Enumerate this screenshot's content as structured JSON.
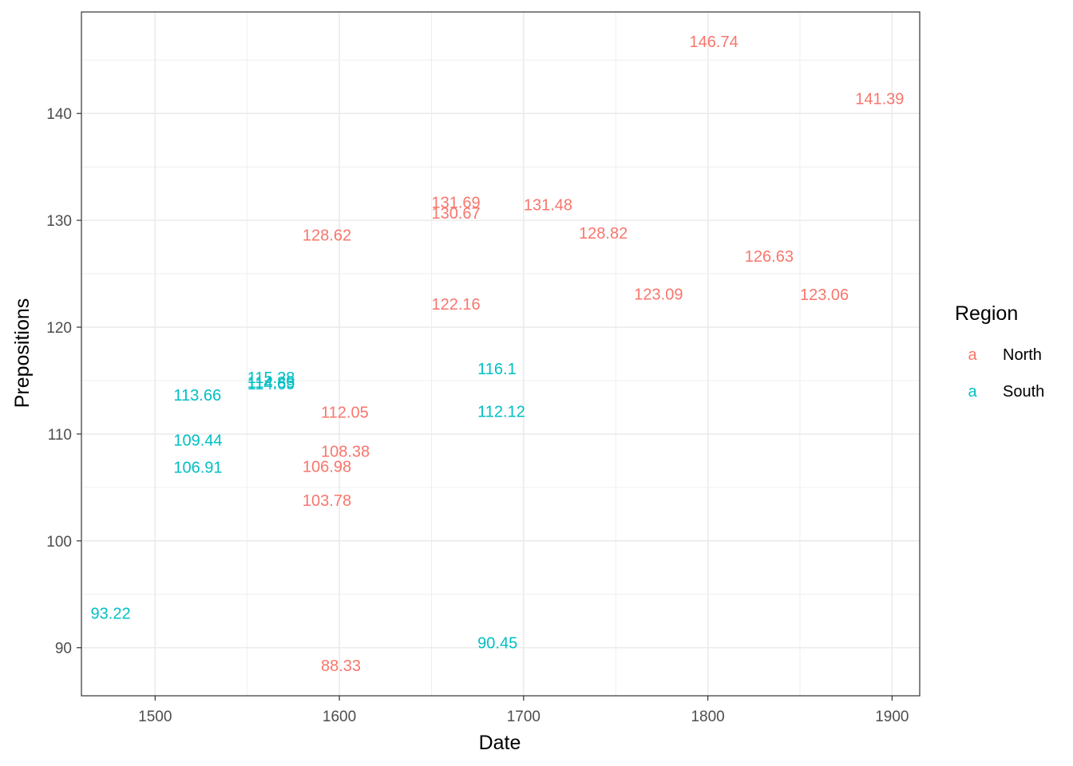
{
  "chart_data": {
    "type": "scatter",
    "title": "",
    "xlabel": "Date",
    "ylabel": "Prepositions",
    "xlim": [
      1460,
      1915
    ],
    "ylim": [
      85.5,
      149.5
    ],
    "x_ticks": [
      1500,
      1600,
      1700,
      1800,
      1900
    ],
    "y_ticks": [
      90,
      100,
      110,
      120,
      130,
      140
    ],
    "grid": true,
    "marker": "text labels showing y value",
    "legend": {
      "title": "Region",
      "position": "right",
      "key_glyph": "a",
      "entries": [
        {
          "name": "North",
          "color": "#F8766D"
        },
        {
          "name": "South",
          "color": "#00BFC4"
        }
      ]
    },
    "series": [
      {
        "name": "North",
        "color": "#F8766D",
        "points": [
          {
            "x": 1790,
            "y": 146.74,
            "label": "146.74"
          },
          {
            "x": 1880,
            "y": 141.39,
            "label": "141.39"
          },
          {
            "x": 1650,
            "y": 131.69,
            "label": "131.69"
          },
          {
            "x": 1650,
            "y": 130.67,
            "label": "130.67"
          },
          {
            "x": 1700,
            "y": 131.48,
            "label": "131.48"
          },
          {
            "x": 1580,
            "y": 128.62,
            "label": "128.62"
          },
          {
            "x": 1730,
            "y": 128.82,
            "label": "128.82"
          },
          {
            "x": 1820,
            "y": 126.63,
            "label": "126.63"
          },
          {
            "x": 1760,
            "y": 123.09,
            "label": "123.09"
          },
          {
            "x": 1850,
            "y": 123.06,
            "label": "123.06"
          },
          {
            "x": 1650,
            "y": 122.16,
            "label": "122.16"
          },
          {
            "x": 1590,
            "y": 112.05,
            "label": "112.05"
          },
          {
            "x": 1590,
            "y": 108.38,
            "label": "108.38"
          },
          {
            "x": 1580,
            "y": 106.98,
            "label": "106.98"
          },
          {
            "x": 1580,
            "y": 103.78,
            "label": "103.78"
          },
          {
            "x": 1590,
            "y": 88.33,
            "label": "88.33"
          }
        ]
      },
      {
        "name": "South",
        "color": "#00BFC4",
        "points": [
          {
            "x": 1675,
            "y": 116.1,
            "label": "116.1"
          },
          {
            "x": 1550,
            "y": 115.28,
            "label": "115.28"
          },
          {
            "x": 1550,
            "y": 114.85,
            "label": "114.85"
          },
          {
            "x": 1550,
            "y": 114.69,
            "label": "114.69"
          },
          {
            "x": 1510,
            "y": 113.66,
            "label": "113.66"
          },
          {
            "x": 1675,
            "y": 112.12,
            "label": "112.12"
          },
          {
            "x": 1510,
            "y": 109.44,
            "label": "109.44"
          },
          {
            "x": 1510,
            "y": 106.91,
            "label": "106.91"
          },
          {
            "x": 1465,
            "y": 93.22,
            "label": "93.22"
          },
          {
            "x": 1675,
            "y": 90.45,
            "label": "90.45"
          }
        ]
      }
    ]
  }
}
